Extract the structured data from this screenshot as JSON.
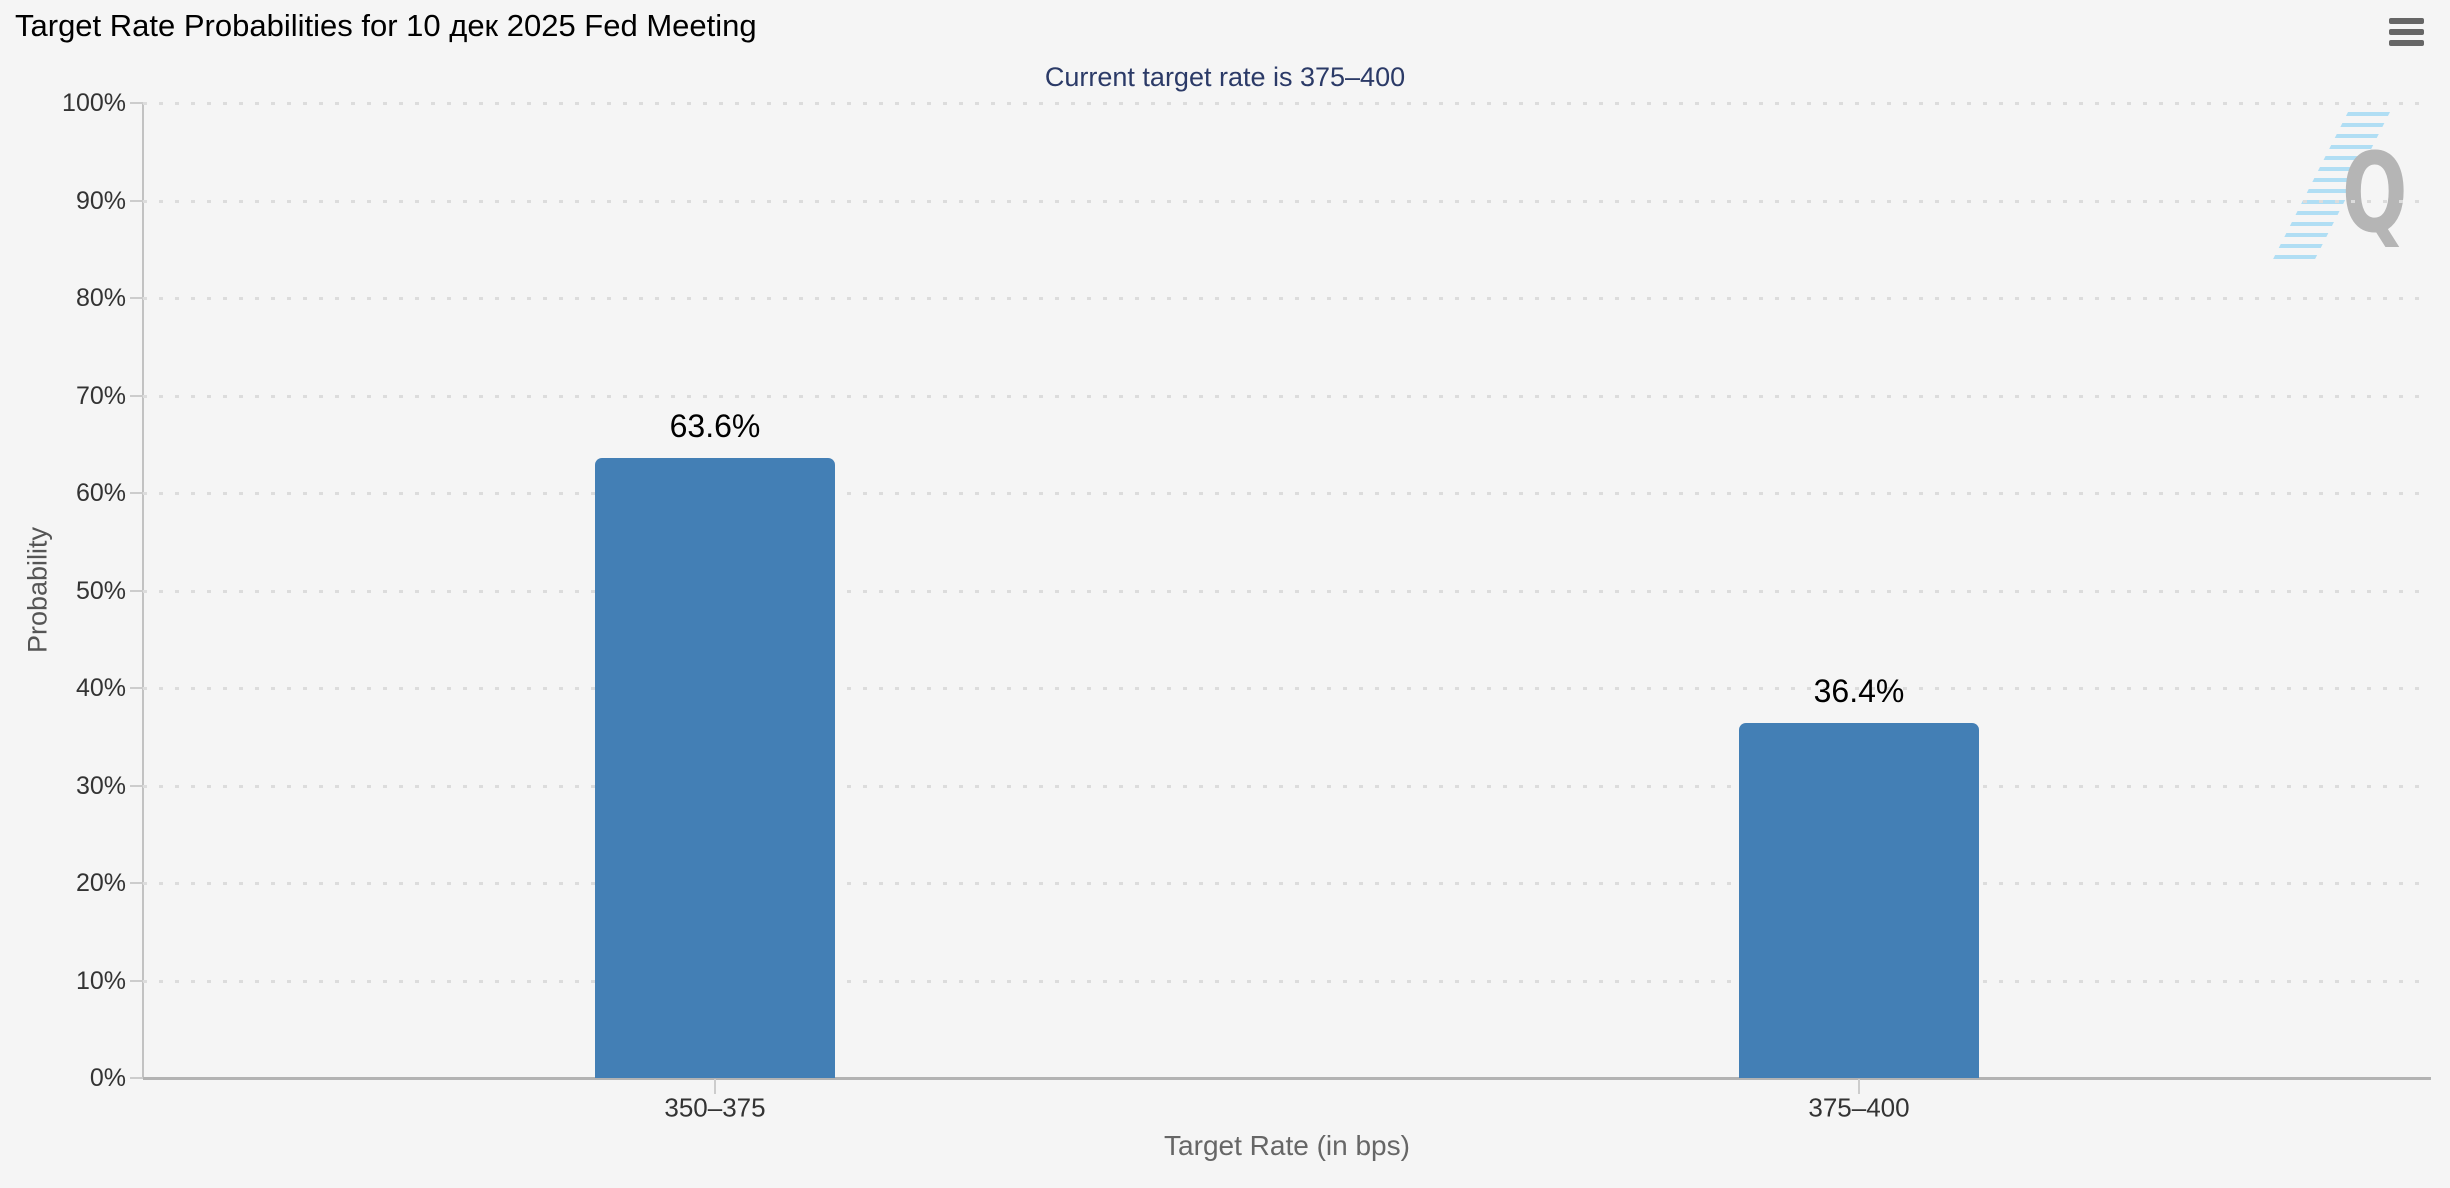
{
  "chart_data": {
    "type": "bar",
    "title": "Target Rate Probabilities for 10 дек 2025 Fed Meeting",
    "subtitle": "Current target rate is 375–400",
    "categories": [
      "350–375",
      "375–400"
    ],
    "values": [
      63.6,
      36.4
    ],
    "data_labels": [
      "63.6%",
      "36.4%"
    ],
    "xlabel": "Target Rate (in bps)",
    "ylabel": "Probability",
    "ylim": [
      0,
      100
    ],
    "ytick_step": 10,
    "ytick_suffix": "%",
    "grid": "dotted-horizontal",
    "legend": "none"
  },
  "colors": {
    "bar": "#437fb5",
    "subtitle_text": "#2b3a67",
    "background": "#f5f5f5"
  },
  "menu": {
    "icon": "hamburger-icon"
  },
  "watermark": {
    "letter": "Q"
  }
}
